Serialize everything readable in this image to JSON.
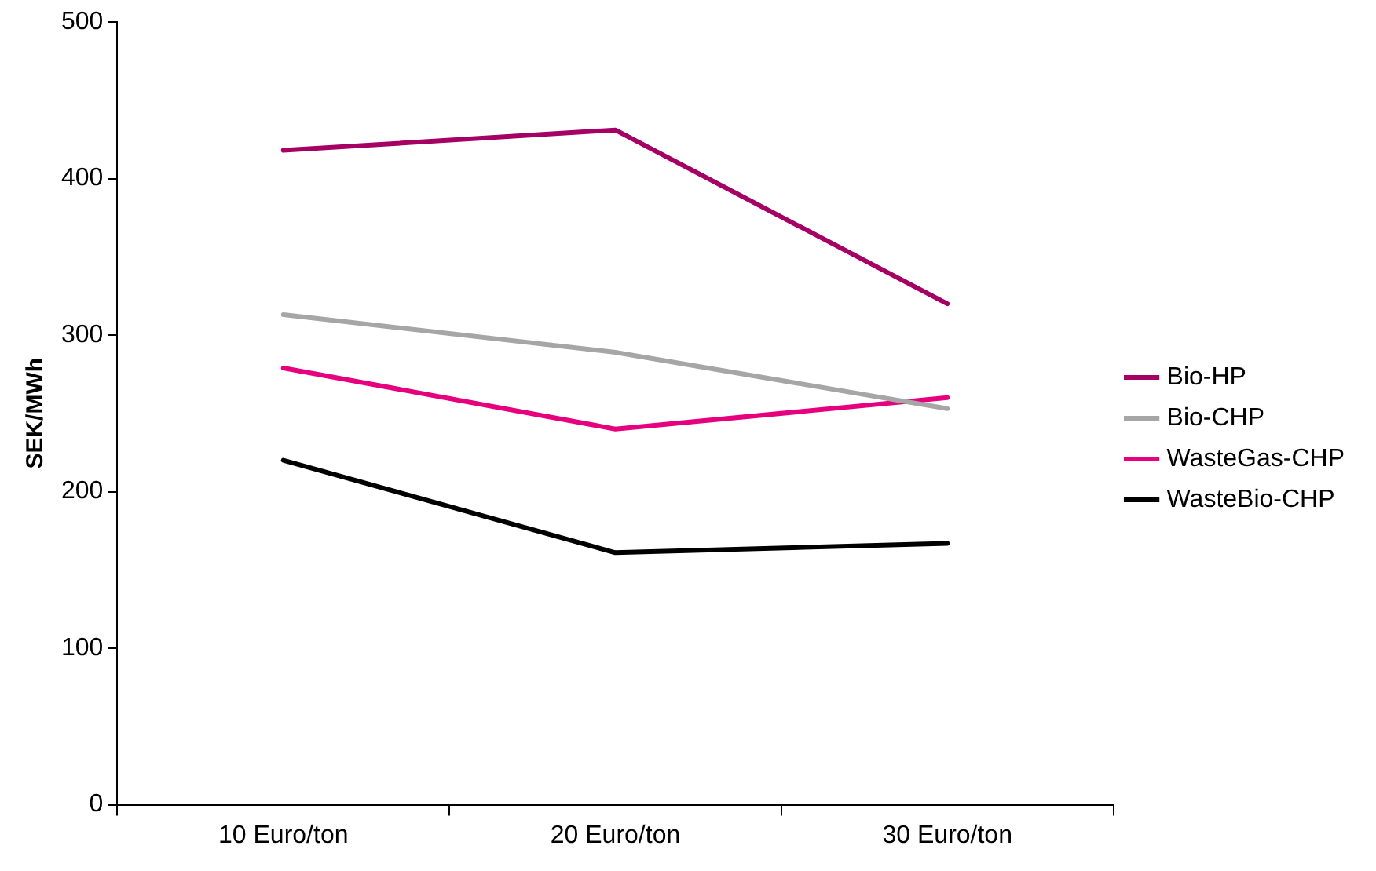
{
  "chart_data": {
    "type": "line",
    "ylabel": "SEK/MWh",
    "categories": [
      "10 Euro/ton",
      "20 Euro/ton",
      "30 Euro/ton"
    ],
    "series": [
      {
        "name": "Bio-HP",
        "color": "#a50064",
        "values": [
          418,
          431,
          320
        ]
      },
      {
        "name": "Bio-CHP",
        "color": "#a6a6a6",
        "values": [
          313,
          289,
          253
        ]
      },
      {
        "name": "WasteGas-CHP",
        "color": "#e6007e",
        "values": [
          279,
          240,
          260
        ]
      },
      {
        "name": "WasteBio-CHP",
        "color": "#000000",
        "values": [
          220,
          161,
          167
        ]
      }
    ],
    "ylim": [
      0,
      500
    ],
    "yticks": [
      0,
      100,
      200,
      300,
      400,
      500
    ],
    "grid": false,
    "legend": "right",
    "marker": "none",
    "line_style": "solid"
  }
}
